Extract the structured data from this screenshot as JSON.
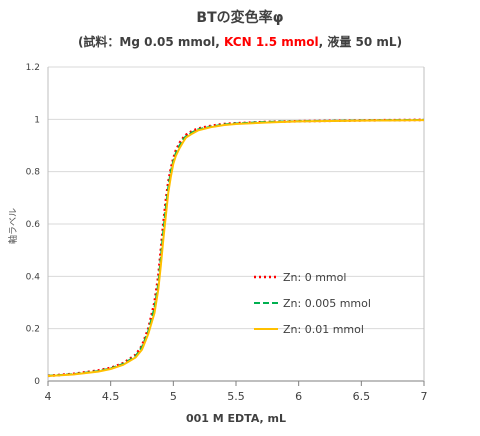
{
  "chart_data": {
    "type": "line",
    "title": "BTの変色率φ",
    "subtitle_parts": [
      {
        "text": "(試料：Mg 0.05 mmol, ",
        "color": "#404040"
      },
      {
        "text": "KCN 1.5 mmol",
        "color": "#ff0000"
      },
      {
        "text": ", 液量 50 mL)",
        "color": "#404040"
      }
    ],
    "xlabel": "001 M EDTA, mL",
    "ylabel": "軸ラベル",
    "xlim": [
      4,
      7
    ],
    "ylim": [
      0,
      1.2
    ],
    "x_ticks": [
      "4",
      "4.5",
      "5",
      "5.5",
      "6",
      "6.5",
      "7"
    ],
    "y_ticks": [
      "0",
      "0.2",
      "0.4",
      "0.6",
      "0.8",
      "1",
      "1.2"
    ],
    "grid": "horizontal",
    "legend_position": "center-right",
    "x": [
      4.0,
      4.2,
      4.4,
      4.5,
      4.6,
      4.7,
      4.75,
      4.8,
      4.85,
      4.88,
      4.9,
      4.92,
      4.94,
      4.96,
      4.98,
      5.0,
      5.02,
      5.05,
      5.08,
      5.1,
      5.15,
      5.2,
      5.3,
      5.4,
      5.5,
      5.75,
      6.0,
      6.5,
      7.0
    ],
    "series": [
      {
        "name": "Zn:  0 mmol",
        "color": "#ff0000",
        "style": "dotted",
        "values": [
          0.02,
          0.027,
          0.04,
          0.05,
          0.068,
          0.1,
          0.135,
          0.2,
          0.3,
          0.4,
          0.5,
          0.6,
          0.69,
          0.76,
          0.81,
          0.85,
          0.88,
          0.91,
          0.93,
          0.94,
          0.955,
          0.965,
          0.975,
          0.982,
          0.985,
          0.99,
          0.993,
          0.996,
          0.998
        ]
      },
      {
        "name": "Zn: 0.005 mmol",
        "color": "#00b050",
        "style": "dashed",
        "values": [
          0.02,
          0.026,
          0.038,
          0.048,
          0.065,
          0.095,
          0.13,
          0.19,
          0.28,
          0.37,
          0.47,
          0.57,
          0.66,
          0.74,
          0.8,
          0.84,
          0.87,
          0.9,
          0.925,
          0.935,
          0.95,
          0.962,
          0.972,
          0.98,
          0.984,
          0.99,
          0.993,
          0.996,
          0.998
        ]
      },
      {
        "name": "Zn:  0.01 mmol",
        "color": "#ffc000",
        "style": "solid",
        "values": [
          0.019,
          0.025,
          0.036,
          0.046,
          0.062,
          0.09,
          0.12,
          0.18,
          0.26,
          0.35,
          0.44,
          0.54,
          0.63,
          0.72,
          0.78,
          0.83,
          0.86,
          0.89,
          0.915,
          0.93,
          0.945,
          0.958,
          0.97,
          0.978,
          0.982,
          0.988,
          0.992,
          0.995,
          0.997
        ]
      }
    ]
  }
}
